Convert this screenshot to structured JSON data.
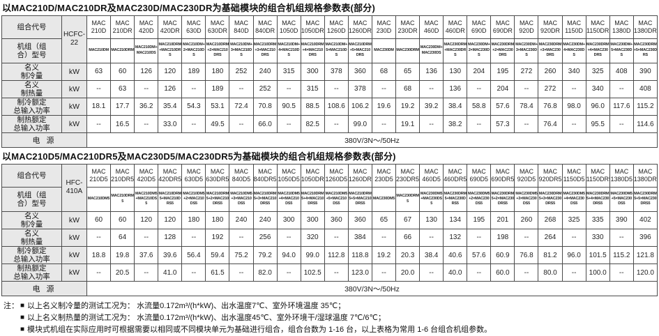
{
  "tables": [
    {
      "title": "以MAC210D/MAC210DR及MAC230D/MAC230DR为基础模块的组合机组规格参数表(部分)",
      "refrigerant": "HCFC-22",
      "labels": {
        "combo_code": "组合代号",
        "model": [
          "机组（组",
          "合）型号"
        ],
        "power": "电 源"
      },
      "columns": [
        "MAC 210D",
        "MAC 210DR",
        "MAC 420D",
        "MAC 420DR",
        "MAC 630D",
        "MAC 630DR",
        "MAC 840D",
        "MAC 840DR",
        "MAC 1050D",
        "MAC 1050DR",
        "MAC 1260D",
        "MAC 1260DR",
        "MAC 230D",
        "MAC 230DR",
        "MAC 460D",
        "MAC 460DR",
        "MAC 690D",
        "MAC 690DR",
        "MAC 920D",
        "MAC 920DR",
        "MAC 1150D",
        "MAC 1150DR",
        "MAC 1380D",
        "MAC 1380DR"
      ],
      "models": [
        "MAC210DM",
        "MAC210DRM",
        "MAC210DM+MAC210DS",
        "MAC210DRM+MAC210DRS",
        "MAC210DM+2×MAC210DS",
        "MAC210DRM+2×MAC210DRS",
        "MAC210DM+3×MAC210DS",
        "MAC210DRM+3×MAC210DRS",
        "MAC210DM+4×MAC210DS",
        "MAC210DRM+4×MAC210DRS",
        "MAC210DM+5×MAC210DS",
        "MAC210DRM+5×MAC210DRS",
        "MAC230DM",
        "MAC230DRM",
        "MAC230DM+MAC230DS",
        "MAC230DRM+MAC230DRS",
        "MAC230DM+2×MAC230DS",
        "MAC230DRM+2×MAC230DRS",
        "MAC230DM+3×MAC230DS",
        "MAC230DRM+3×MAC230DRS",
        "MAC230DM+4×MAC230DS",
        "MAC230DRM+4×MAC230DRS",
        "MAC230DM+5×MAC230DS",
        "MAC230DRM+5×MAC230DRS"
      ],
      "rows": [
        {
          "label": [
            "名义",
            "制冷量"
          ],
          "unit": "kW",
          "values": [
            "63",
            "60",
            "126",
            "120",
            "189",
            "180",
            "252",
            "240",
            "315",
            "300",
            "378",
            "360",
            "68",
            "65",
            "136",
            "130",
            "204",
            "195",
            "272",
            "260",
            "340",
            "325",
            "408",
            "390"
          ]
        },
        {
          "label": [
            "名义",
            "制热量"
          ],
          "unit": "kW",
          "values": [
            "--",
            "63",
            "--",
            "126",
            "--",
            "189",
            "--",
            "252",
            "--",
            "315",
            "--",
            "378",
            "--",
            "68",
            "--",
            "136",
            "--",
            "204",
            "--",
            "272",
            "--",
            "340",
            "--",
            "408"
          ]
        },
        {
          "label": [
            "制冷额定",
            "总输入功率"
          ],
          "unit": "kW",
          "values": [
            "18.1",
            "17.7",
            "36.2",
            "35.4",
            "54.3",
            "53.1",
            "72.4",
            "70.8",
            "90.5",
            "88.5",
            "108.6",
            "106.2",
            "19.6",
            "19.2",
            "39.2",
            "38.4",
            "58.8",
            "57.6",
            "78.4",
            "76.8",
            "98.0",
            "96.0",
            "117.6",
            "115.2"
          ]
        },
        {
          "label": [
            "制热额定",
            "总输入功率"
          ],
          "unit": "kW",
          "values": [
            "--",
            "16.5",
            "--",
            "33.0",
            "--",
            "49.5",
            "--",
            "66.0",
            "--",
            "82.5",
            "--",
            "99.0",
            "--",
            "19.1",
            "--",
            "38.2",
            "--",
            "57.3",
            "--",
            "76.4",
            "--",
            "95.5",
            "--",
            "114.6"
          ]
        }
      ],
      "power_value": "380V/3N～/50Hz"
    },
    {
      "title": "以MAC210D5/MAC210DR5及MAC230D5/MAC230DR5为基础模块的组合机组规格参数表(部分)",
      "refrigerant": "HFC-410A",
      "labels": {
        "combo_code": "组合代号",
        "model": [
          "机组（组",
          "合）型号"
        ],
        "power": "电 源"
      },
      "columns": [
        "MAC 210D5",
        "MAC 210DR5",
        "MAC 420D5",
        "MAC 420DR5",
        "MAC 630D5",
        "MAC 630DR5",
        "MAC 840D5",
        "MAC 840DR5",
        "MAC 1050D5",
        "MAC 1050DR5",
        "MAC 1260D5",
        "MAC 1260DR5",
        "MAC 230D5",
        "MAC 230DR5",
        "MAC 460D5",
        "MAC 460DR5",
        "MAC 690D5",
        "MAC 690DR5",
        "MAC 920D5",
        "MAC 920DR5",
        "MAC 1150D5",
        "MAC 1150DR5",
        "MAC 1380D5",
        "MAC 1380DR5"
      ],
      "models": [
        "MAC210DM5",
        "MAC210DRM5",
        "MAC210DM5+MAC210DS5",
        "MAC210DRM5+MAC210DRS5",
        "MAC210DM5+2×MAC210DS5",
        "MAC210DRM5+2×MAC210DRS5",
        "MAC210DM5+3×MAC210DS5",
        "MAC210DRM5+3×MAC210DRS5",
        "MAC210DM5+4×MAC210DS5",
        "MAC210DRM5+4×MAC210DRS5",
        "MAC210DM5+5×MAC210DS5",
        "MAC210DRM5+5×MAC210DRS5",
        "MAC230DM5",
        "MAC230DRM5",
        "MAC230DM5+MAC230DS5",
        "MAC230DRM5+MAC230DRS5",
        "MAC230DM5+2×MAC230DS5",
        "MAC230DRM5+2×MAC230DRS5",
        "MAC230DM5+3×MAC230DS5",
        "MAC230DRM5+3×MAC230DRS5",
        "MAC230DM5+4×MAC230DS5",
        "MAC230DRM5+4×MAC230DRS5",
        "MAC230DM5+5×MAC230DS5",
        "MAC230DRM5+5×MAC230DRS5"
      ],
      "rows": [
        {
          "label": [
            "名义",
            "制冷量"
          ],
          "unit": "kW",
          "values": [
            "60",
            "60",
            "120",
            "120",
            "180",
            "180",
            "240",
            "240",
            "300",
            "300",
            "360",
            "360",
            "65",
            "67",
            "130",
            "134",
            "195",
            "201",
            "260",
            "268",
            "325",
            "335",
            "390",
            "402"
          ]
        },
        {
          "label": [
            "名义",
            "制热量"
          ],
          "unit": "kW",
          "values": [
            "--",
            "64",
            "--",
            "128",
            "--",
            "192",
            "--",
            "256",
            "--",
            "320",
            "--",
            "384",
            "--",
            "66",
            "--",
            "132",
            "--",
            "198",
            "--",
            "264",
            "--",
            "330",
            "--",
            "396"
          ]
        },
        {
          "label": [
            "制冷额定",
            "总输入功率"
          ],
          "unit": "kW",
          "values": [
            "18.8",
            "19.8",
            "37.6",
            "39.6",
            "56.4",
            "59.4",
            "75.2",
            "79.2",
            "94.0",
            "99.0",
            "112.8",
            "118.8",
            "19.2",
            "20.3",
            "38.4",
            "40.6",
            "57.6",
            "60.9",
            "76.8",
            "81.2",
            "96.0",
            "101.5",
            "115.2",
            "121.8"
          ]
        },
        {
          "label": [
            "制热额定",
            "总输入功率"
          ],
          "unit": "kW",
          "values": [
            "--",
            "20.5",
            "--",
            "41.0",
            "--",
            "61.5",
            "--",
            "82.0",
            "--",
            "102.5",
            "--",
            "123.0",
            "--",
            "20.0",
            "--",
            "40.0",
            "--",
            "60.0",
            "--",
            "80.0",
            "--",
            "100.0",
            "--",
            "120.0"
          ]
        }
      ],
      "power_value": "380V/3N～/50Hz"
    }
  ],
  "notes": {
    "prefix": "注：",
    "bullet": "■",
    "items": [
      "以上名义制冷量的测试工况为： 水流量0.172m³/(h*kW)、出水温度7℃、室外环境温度 35℃；",
      "以上名义制热量的测试工况为： 水流量0.172m³/(h*kW)、出水温度45℃、室外环境干/湿球温度 7℃/6℃；",
      "模块式机组在实际应用时可根据需要以相同或不同模块单元为基础进行组合，组合台数为 1-16 台，以上表格为常用 1-6 台组合机组参数。"
    ]
  },
  "colors": {
    "header_bg": "#e8e8e8",
    "border": "#4a4a4a",
    "text": "#111111"
  }
}
